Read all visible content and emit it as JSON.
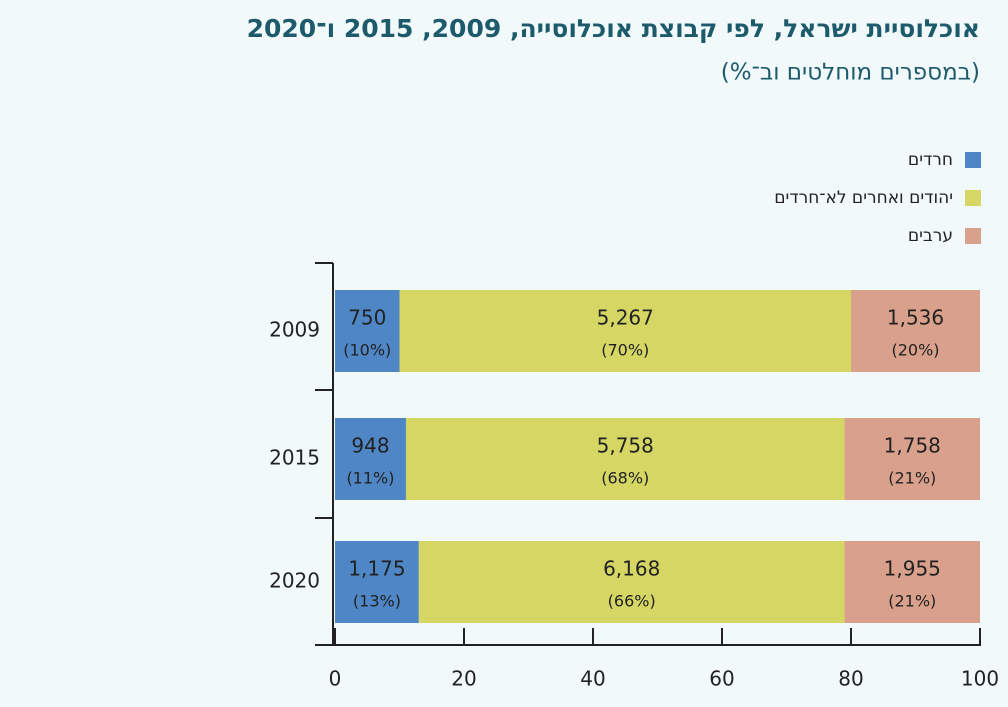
{
  "chart_data": {
    "type": "stacked-barh",
    "title": "אוכלוסיית ישראל, לפי קבוצת אוכלוסייה, 2009, 2015 ו־2020",
    "subtitle": "(במספרים מוחלטים וב־%)",
    "categories": [
      "2009",
      "2015",
      "2020"
    ],
    "series": [
      {
        "name": "חרדים",
        "color": "#4f86c6",
        "values": [
          10,
          11,
          13
        ],
        "value_labels": [
          "(10%)",
          "(11%)",
          "(13%)"
        ],
        "counts": [
          "750",
          "948",
          "1,175"
        ]
      },
      {
        "name": "יהודים ואחרים לא־חרדים",
        "color": "#d6d665",
        "values": [
          70,
          68,
          66
        ],
        "value_labels": [
          "(70%)",
          "(68%)",
          "(66%)"
        ],
        "counts": [
          "5,267",
          "5,758",
          "6,168"
        ]
      },
      {
        "name": "ערבים",
        "color": "#d9a08c",
        "values": [
          20,
          21,
          21
        ],
        "value_labels": [
          "(20%)",
          "(21%)",
          "(21%)"
        ],
        "counts": [
          "1,536",
          "1,758",
          "1,955"
        ]
      }
    ],
    "xlim": [
      0,
      100
    ],
    "xticks": [
      0,
      20,
      40,
      60,
      80,
      100
    ]
  }
}
